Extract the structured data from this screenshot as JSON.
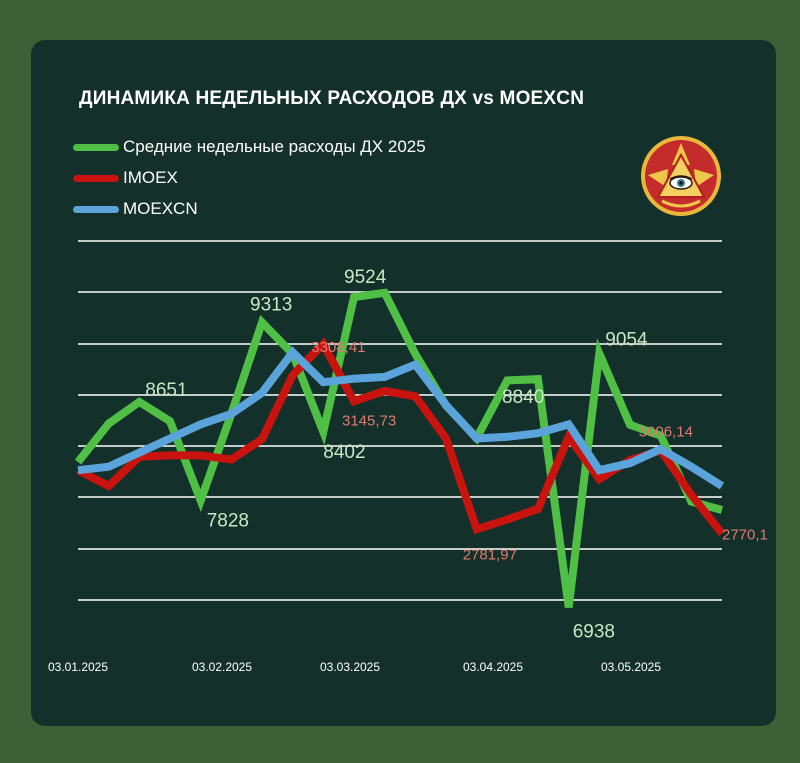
{
  "colors": {
    "background": "#3f5f36",
    "panel": "#13302b",
    "green": "#4fbf45",
    "red": "#c8130f",
    "blue": "#5ba3db",
    "grid": "#ffffff",
    "label_green": "#c9e8c2",
    "label_red": "#e07a70"
  },
  "logo_icon": "eye-pyramid-emblem-icon",
  "chart_data": {
    "type": "line",
    "title": "ДИНАМИКА НЕДЕЛЬНЫХ РАСХОДОВ ДХ vs MOEXCN",
    "legend_position": "top-left",
    "grid": true,
    "x_ticks": [
      "03.01.2025",
      "03.02.2025",
      "03.03.2025",
      "03.04.2025",
      "03.05.2025"
    ],
    "x": [
      "03.01.2025",
      "10.01.2025",
      "17.01.2025",
      "24.01.2025",
      "31.01.2025",
      "07.02.2025",
      "14.02.2025",
      "21.02.2025",
      "28.02.2025",
      "07.03.2025",
      "14.03.2025",
      "21.03.2025",
      "28.03.2025",
      "04.04.2025",
      "11.04.2025",
      "18.04.2025",
      "25.04.2025",
      "02.05.2025",
      "09.05.2025",
      "16.05.2025",
      "23.05.2025",
      "30.05.2025"
    ],
    "series": [
      {
        "name": "Средние недельные расходы ДХ 2025",
        "color": "#4fbf45",
        "axis": "spending",
        "values": [
          8150,
          8470,
          8651,
          8490,
          7828,
          8550,
          9313,
          9050,
          8402,
          9524,
          9560,
          9050,
          8620,
          8350,
          8830,
          8840,
          6938,
          9054,
          8460,
          8370,
          7820,
          7750
        ],
        "point_labels": [
          null,
          null,
          "8651",
          null,
          "7828",
          null,
          "9313",
          null,
          "8402",
          "9524",
          null,
          null,
          null,
          null,
          null,
          "8840",
          "6938",
          "9054",
          null,
          null,
          null,
          null
        ]
      },
      {
        "name": "IMOEX",
        "color": "#c8130f",
        "axis": "index",
        "values": [
          2950,
          2905,
          2988,
          2992,
          2992,
          2980,
          3038,
          3220,
          3308.41,
          3145.73,
          3175,
          3160,
          3040,
          2781.97,
          2810,
          2840,
          3045,
          2925,
          2979,
          3006.14,
          2880,
          2770.1
        ],
        "point_labels": [
          null,
          null,
          null,
          null,
          null,
          null,
          null,
          null,
          "3308,41",
          "3145,73",
          null,
          null,
          null,
          "2781,97",
          null,
          null,
          null,
          null,
          null,
          "3006,14",
          null,
          "2770,1"
        ]
      },
      {
        "name": "MOEXCN",
        "color": "#5ba3db",
        "axis": "index",
        "values": [
          2950,
          2960,
          3000,
          3040,
          3080,
          3110,
          3170,
          3285,
          3200,
          3210,
          3215,
          3250,
          3135,
          3040,
          3045,
          3055,
          3080,
          2950,
          2970,
          3010,
          2960,
          2905
        ],
        "point_labels": []
      }
    ]
  }
}
